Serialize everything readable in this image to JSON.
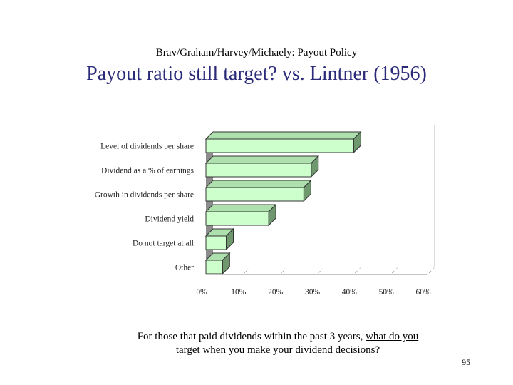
{
  "slide": {
    "header": "Brav/Graham/Harvey/Michaely: Payout Policy",
    "title": "Payout ratio still target? vs. Lintner (1956)",
    "question": {
      "part1": "For those that paid dividends within the past 3 years, ",
      "part2_underlined": "what do you",
      "part3_underlined": "target",
      "part4": " when you make your dividend decisions?"
    },
    "page_number": "95"
  },
  "chart_data": {
    "type": "bar",
    "orientation": "horizontal",
    "categories": [
      "Level of dividends per share",
      "Dividend as a % of earnings",
      "Growth in dividends per share",
      "Dividend yield",
      "Do not target at all",
      "Other"
    ],
    "values": [
      40,
      28.5,
      26.5,
      17,
      5.5,
      4.5
    ],
    "xlim": [
      0,
      60
    ],
    "xticks": [
      "0%",
      "10%",
      "20%",
      "30%",
      "40%",
      "50%",
      "60%"
    ],
    "xtick_values": [
      0,
      10,
      20,
      30,
      40,
      50,
      60
    ],
    "title": "",
    "xlabel": "",
    "ylabel": "",
    "grid": "vertical",
    "style": "3d",
    "colors": {
      "bar_face": "#ccffcc",
      "bar_top": "#aee0ae",
      "bar_side": "#6f986f",
      "wall": "#8c8c8c"
    }
  }
}
